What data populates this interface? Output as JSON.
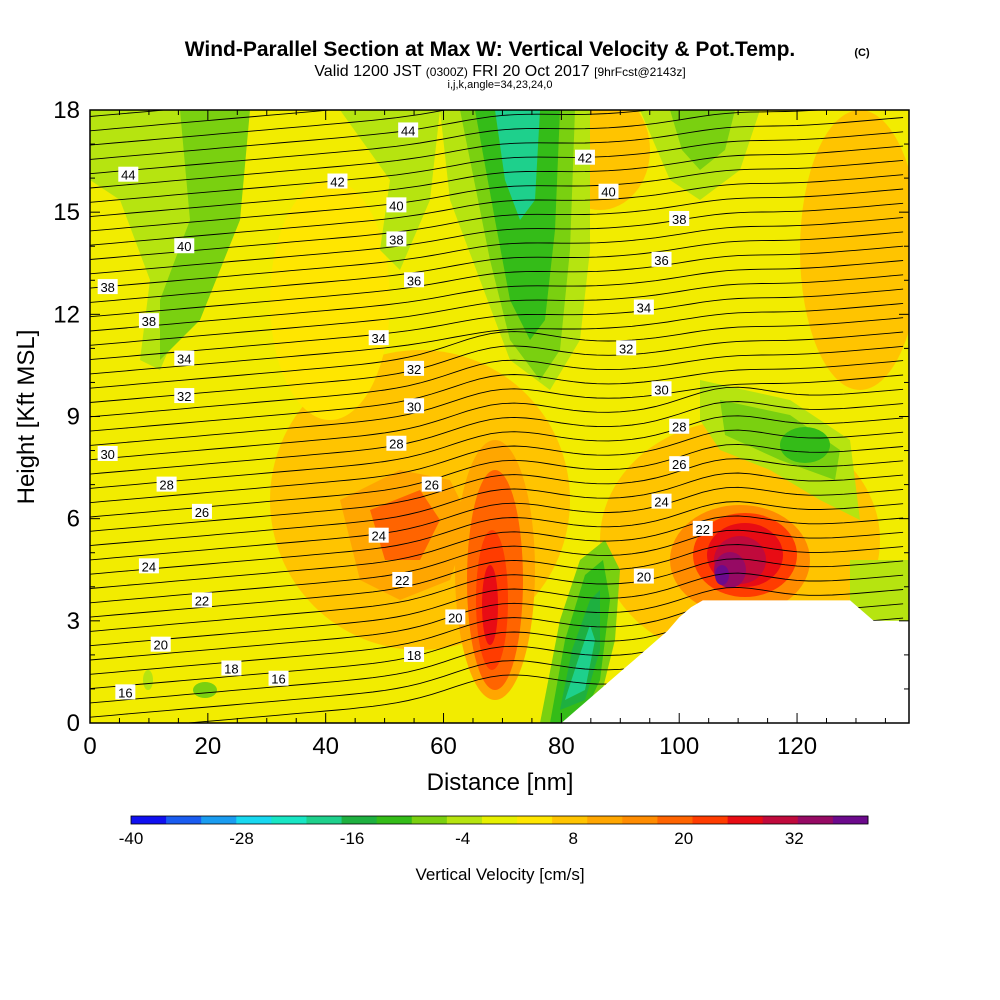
{
  "header": {
    "title": "Wind-Parallel Section at Max W: Vertical Velocity & Pot.Temp.",
    "copyright": "(C)",
    "valid_prefix": "Valid 1200 JST",
    "valid_utc": "(0300Z)",
    "valid_date": "FRI 20 Oct 2017",
    "forecast": "[9hrFcst@2143z]",
    "indices": "i,j,k,angle=34,23,24,0"
  },
  "chart_data": {
    "type": "heatmap",
    "xlabel": "Distance [nm]",
    "ylabel": "Height [Kft MSL]",
    "xlim": [
      0,
      139
    ],
    "ylim": [
      0,
      18
    ],
    "x_ticks": [
      0,
      20,
      40,
      60,
      80,
      100,
      120
    ],
    "y_ticks": [
      0,
      3,
      6,
      9,
      12,
      15,
      18
    ],
    "colorbar": {
      "title": "Vertical Velocity [cm/s]",
      "min": -40,
      "max": 40,
      "step": 4,
      "tick_values": [
        -40,
        -28,
        -16,
        -4,
        8,
        20,
        32
      ],
      "tick_labels": [
        "-40",
        "-28",
        "-16",
        "-4",
        "8",
        "20",
        "32"
      ],
      "colors": [
        "#1010f0",
        "#1a5cf0",
        "#1a9cf0",
        "#18d8f0",
        "#18e6c4",
        "#1ed08c",
        "#1eb040",
        "#34bc18",
        "#7ad010",
        "#b6e410",
        "#e6f000",
        "#ffe600",
        "#ffc400",
        "#ffa600",
        "#ff8c00",
        "#ff6400",
        "#ff3c00",
        "#e80c14",
        "#c00a3c",
        "#960a64",
        "#6c0a8c"
      ]
    },
    "terrain": [
      [
        0,
        0
      ],
      [
        80,
        0
      ],
      [
        82,
        0.3
      ],
      [
        84,
        0.6
      ],
      [
        86,
        0.9
      ],
      [
        88,
        1.2
      ],
      [
        90,
        1.5
      ],
      [
        92,
        1.8
      ],
      [
        94,
        2.1
      ],
      [
        96,
        2.4
      ],
      [
        98,
        2.7
      ],
      [
        100,
        3.1
      ],
      [
        102,
        3.4
      ],
      [
        104,
        3.6
      ],
      [
        129,
        3.6
      ],
      [
        131,
        3.3
      ],
      [
        133,
        3.0
      ],
      [
        139,
        3.0
      ]
    ],
    "theta_labels": [
      {
        "text": "44",
        "x": 6.5,
        "y": 16.1
      },
      {
        "text": "44",
        "x": 54,
        "y": 17.4
      },
      {
        "text": "42",
        "x": 42,
        "y": 15.9
      },
      {
        "text": "42",
        "x": 84,
        "y": 16.6
      },
      {
        "text": "40",
        "x": 16,
        "y": 14.0
      },
      {
        "text": "40",
        "x": 52,
        "y": 15.2
      },
      {
        "text": "40",
        "x": 88,
        "y": 15.6
      },
      {
        "text": "38",
        "x": 3,
        "y": 12.8
      },
      {
        "text": "38",
        "x": 52,
        "y": 14.2
      },
      {
        "text": "38",
        "x": 100,
        "y": 14.8
      },
      {
        "text": "38",
        "x": 10,
        "y": 11.8
      },
      {
        "text": "36",
        "x": 55,
        "y": 13.0
      },
      {
        "text": "36",
        "x": 97,
        "y": 13.6
      },
      {
        "text": "34",
        "x": 16,
        "y": 10.7
      },
      {
        "text": "34",
        "x": 49,
        "y": 11.3
      },
      {
        "text": "34",
        "x": 94,
        "y": 12.2
      },
      {
        "text": "32",
        "x": 16,
        "y": 9.6
      },
      {
        "text": "32",
        "x": 55,
        "y": 10.4
      },
      {
        "text": "32",
        "x": 91,
        "y": 11.0
      },
      {
        "text": "30",
        "x": 3,
        "y": 7.9
      },
      {
        "text": "30",
        "x": 55,
        "y": 9.3
      },
      {
        "text": "30",
        "x": 97,
        "y": 9.8
      },
      {
        "text": "28",
        "x": 13,
        "y": 7.0
      },
      {
        "text": "28",
        "x": 52,
        "y": 8.2
      },
      {
        "text": "28",
        "x": 100,
        "y": 8.7
      },
      {
        "text": "26",
        "x": 19,
        "y": 6.2
      },
      {
        "text": "26",
        "x": 58,
        "y": 7.0
      },
      {
        "text": "26",
        "x": 100,
        "y": 7.6
      },
      {
        "text": "24",
        "x": 10,
        "y": 4.6
      },
      {
        "text": "24",
        "x": 49,
        "y": 5.5
      },
      {
        "text": "24",
        "x": 97,
        "y": 6.5
      },
      {
        "text": "22",
        "x": 19,
        "y": 3.6
      },
      {
        "text": "22",
        "x": 53,
        "y": 4.2
      },
      {
        "text": "22",
        "x": 104,
        "y": 5.7
      },
      {
        "text": "20",
        "x": 12,
        "y": 2.3
      },
      {
        "text": "20",
        "x": 62,
        "y": 3.1
      },
      {
        "text": "20",
        "x": 94,
        "y": 4.3
      },
      {
        "text": "18",
        "x": 24,
        "y": 1.6
      },
      {
        "text": "18",
        "x": 55,
        "y": 2.0
      },
      {
        "text": "16",
        "x": 6,
        "y": 0.9
      },
      {
        "text": "16",
        "x": 32,
        "y": 1.3
      }
    ]
  }
}
